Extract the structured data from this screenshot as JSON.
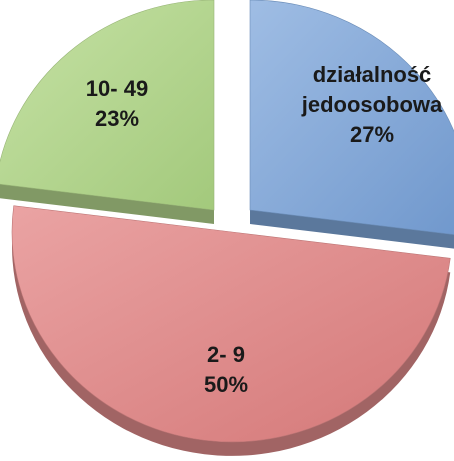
{
  "chart_data": {
    "type": "pie",
    "style": "3d-exploded",
    "title": "",
    "slices": [
      {
        "name": "działalność jedoosobowa",
        "label_lines": [
          "działalność",
          "jedoosobowa",
          "27%"
        ],
        "value": 27,
        "percent_label": "27%",
        "color": "#7ea6d8"
      },
      {
        "name": "2- 9",
        "label_lines": [
          "2- 9",
          "50%"
        ],
        "value": 50,
        "percent_label": "50%",
        "color": "#e08b8b"
      },
      {
        "name": "10- 49",
        "label_lines": [
          "10- 49",
          "23%"
        ],
        "value": 23,
        "percent_label": "23%",
        "color": "#b3d58c"
      }
    ],
    "legend": "none"
  }
}
